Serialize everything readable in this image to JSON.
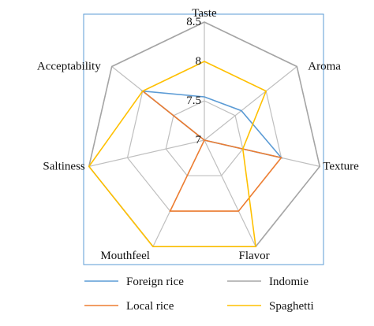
{
  "chart_data": {
    "type": "radar",
    "title": "",
    "categories": [
      "Taste",
      "Aroma",
      "Texture",
      "Flavor",
      "Mouthfeel",
      "Saltiness",
      "Acceptability"
    ],
    "rlim": [
      7,
      8.5
    ],
    "ticks": [
      "7",
      "7.5",
      "8",
      "8.5"
    ],
    "grid": true,
    "legend_placement": "bottom",
    "series": [
      {
        "name": "Foreign rice",
        "color": "#5b9bd5",
        "values": [
          7.55,
          7.6,
          8.0,
          7.0,
          7.0,
          7.0,
          8.0
        ]
      },
      {
        "name": "Local rice",
        "color": "#ed7d31",
        "values": [
          7.0,
          7.0,
          8.0,
          8.0,
          8.0,
          7.0,
          8.0
        ]
      },
      {
        "name": "Indomie",
        "color": "#a5a5a5",
        "values": [
          8.5,
          8.5,
          8.5,
          8.5,
          8.5,
          8.5,
          8.5
        ]
      },
      {
        "name": "Spaghetti",
        "color": "#ffc000",
        "values": [
          8.0,
          8.0,
          7.5,
          8.5,
          8.5,
          8.5,
          8.0
        ]
      }
    ]
  }
}
